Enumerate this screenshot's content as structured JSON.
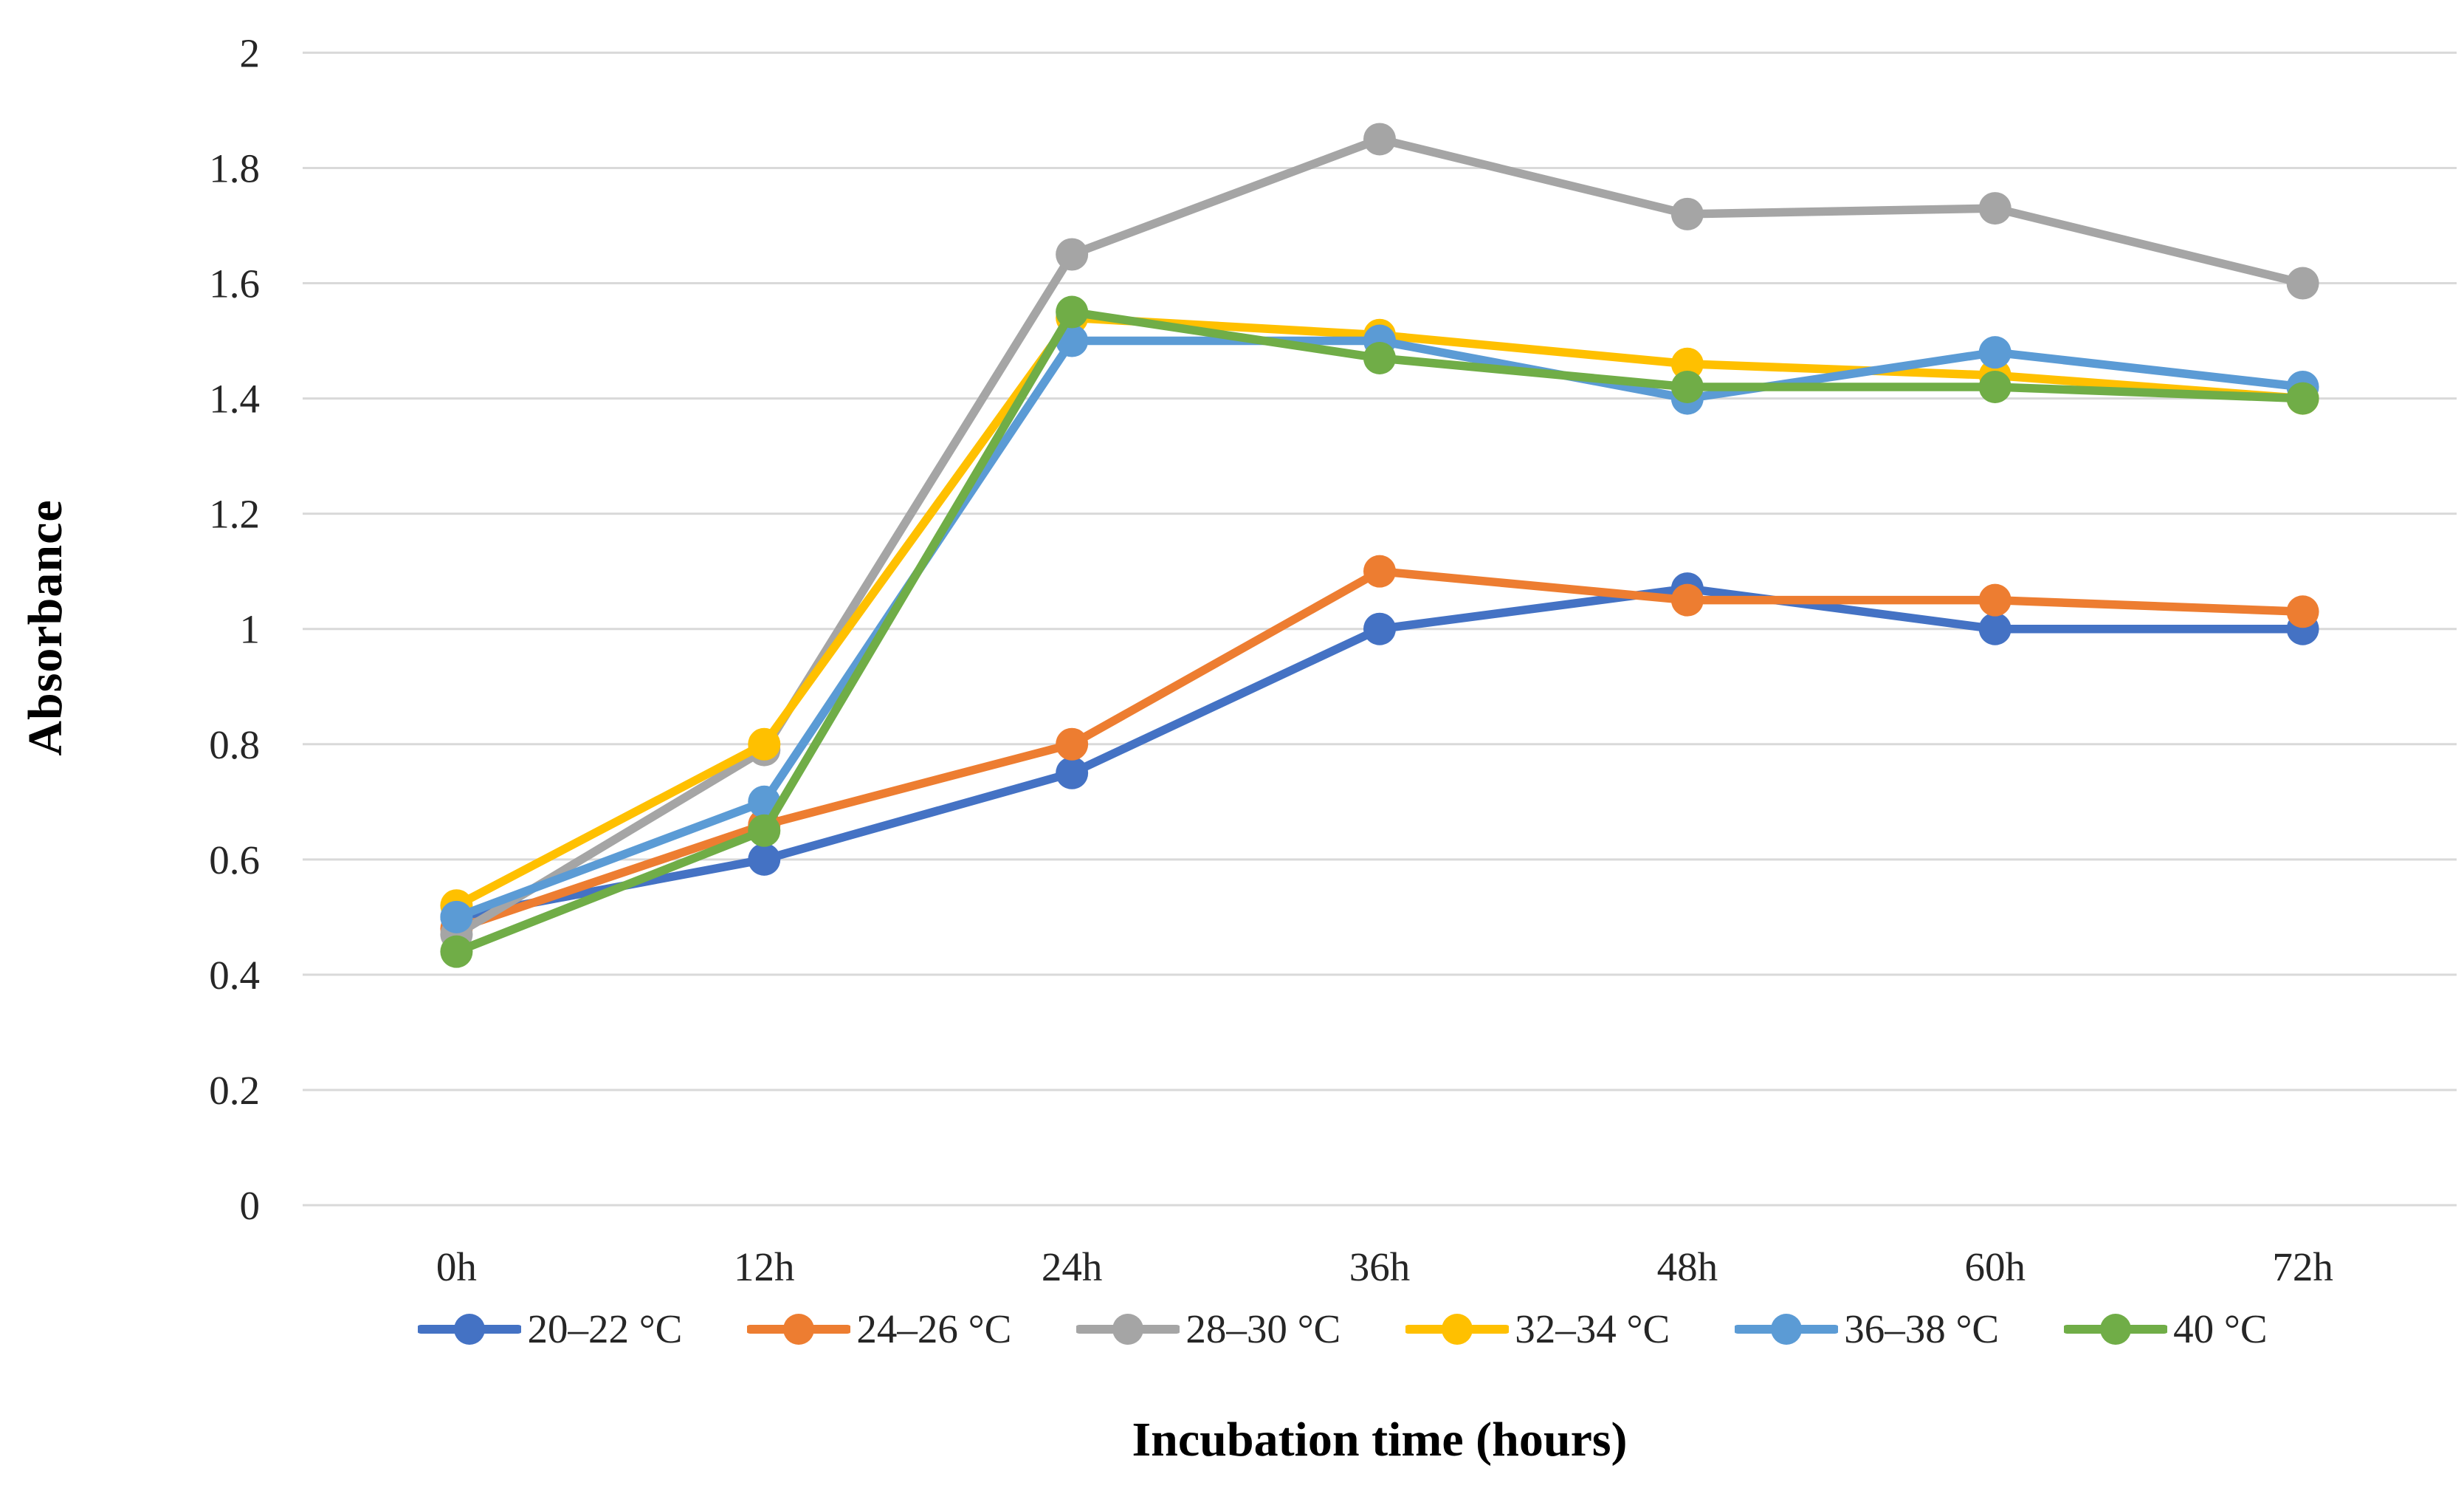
{
  "chart_data": {
    "type": "line",
    "title": "",
    "xlabel": "Incubation time (hours)",
    "ylabel": "Absorbance",
    "categories": [
      "0h",
      "12h",
      "24h",
      "36h",
      "48h",
      "60h",
      "72h"
    ],
    "ylim": [
      0,
      2
    ],
    "y_tick_step": 0.2,
    "y_tick_labels": [
      "0",
      "0.2",
      "0.4",
      "0.6",
      "0.8",
      "1",
      "1.2",
      "1.4",
      "1.6",
      "1.8",
      "2"
    ],
    "grid": true,
    "legend_position": "bottom",
    "gridline_color": "#D9D9D9",
    "text_color": "#262626",
    "background": "#FFFFFF",
    "marker_style": "circle",
    "series": [
      {
        "name": "20–22 °C",
        "color": "#4472C4",
        "values": [
          0.5,
          0.6,
          0.75,
          1.0,
          1.07,
          1.0,
          1.0
        ]
      },
      {
        "name": "24–26 °C",
        "color": "#ED7D31",
        "values": [
          0.48,
          0.66,
          0.8,
          1.1,
          1.05,
          1.05,
          1.03
        ]
      },
      {
        "name": "28–30 °C",
        "color": "#A5A5A5",
        "values": [
          0.47,
          0.79,
          1.65,
          1.85,
          1.72,
          1.73,
          1.6
        ]
      },
      {
        "name": "32–34 °C",
        "color": "#FFC000",
        "values": [
          0.52,
          0.8,
          1.54,
          1.51,
          1.46,
          1.44,
          1.4
        ]
      },
      {
        "name": "36–38 °C",
        "color": "#5B9BD5",
        "values": [
          0.5,
          0.7,
          1.5,
          1.5,
          1.4,
          1.48,
          1.42
        ]
      },
      {
        "name": "40 °C",
        "color": "#70AD47",
        "values": [
          0.44,
          0.65,
          1.55,
          1.47,
          1.42,
          1.42,
          1.4
        ]
      }
    ]
  }
}
